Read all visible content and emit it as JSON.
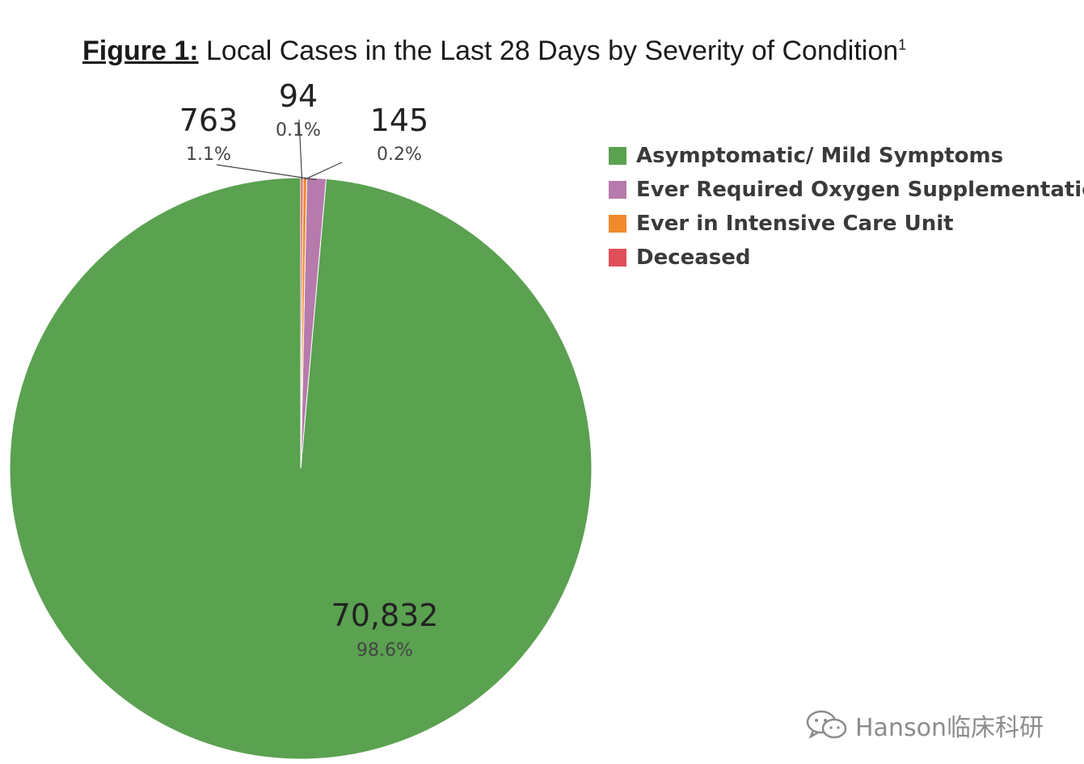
{
  "figure_label": "Figure 1:",
  "title_text": " Local Cases in the Last 28 Days by Severity of Condition",
  "title_footnote": "1",
  "watermark": {
    "icon": "wechat-icon",
    "text": "Hanson临床科研"
  },
  "chart_data": {
    "type": "pie",
    "title": "Local Cases in the Last 28 Days by Severity of Condition",
    "legend_position": "right",
    "start_angle_deg": 0,
    "direction": "counterclockwise",
    "slices": [
      {
        "name": "Asymptomatic/ Mild Symptoms",
        "value": 70832,
        "label": "70,832",
        "percent": "98.6%",
        "color": "#5aa150"
      },
      {
        "name": "Ever Required Oxygen Supplementation",
        "value": 763,
        "label": "763",
        "percent": "1.1%",
        "color": "#b77aac"
      },
      {
        "name": "Ever in Intensive Care Unit",
        "value": 145,
        "label": "145",
        "percent": "0.2%",
        "color": "#f28a2c"
      },
      {
        "name": "Deceased",
        "value": 94,
        "label": "94",
        "percent": "0.1%",
        "color": "#e05058"
      }
    ]
  }
}
